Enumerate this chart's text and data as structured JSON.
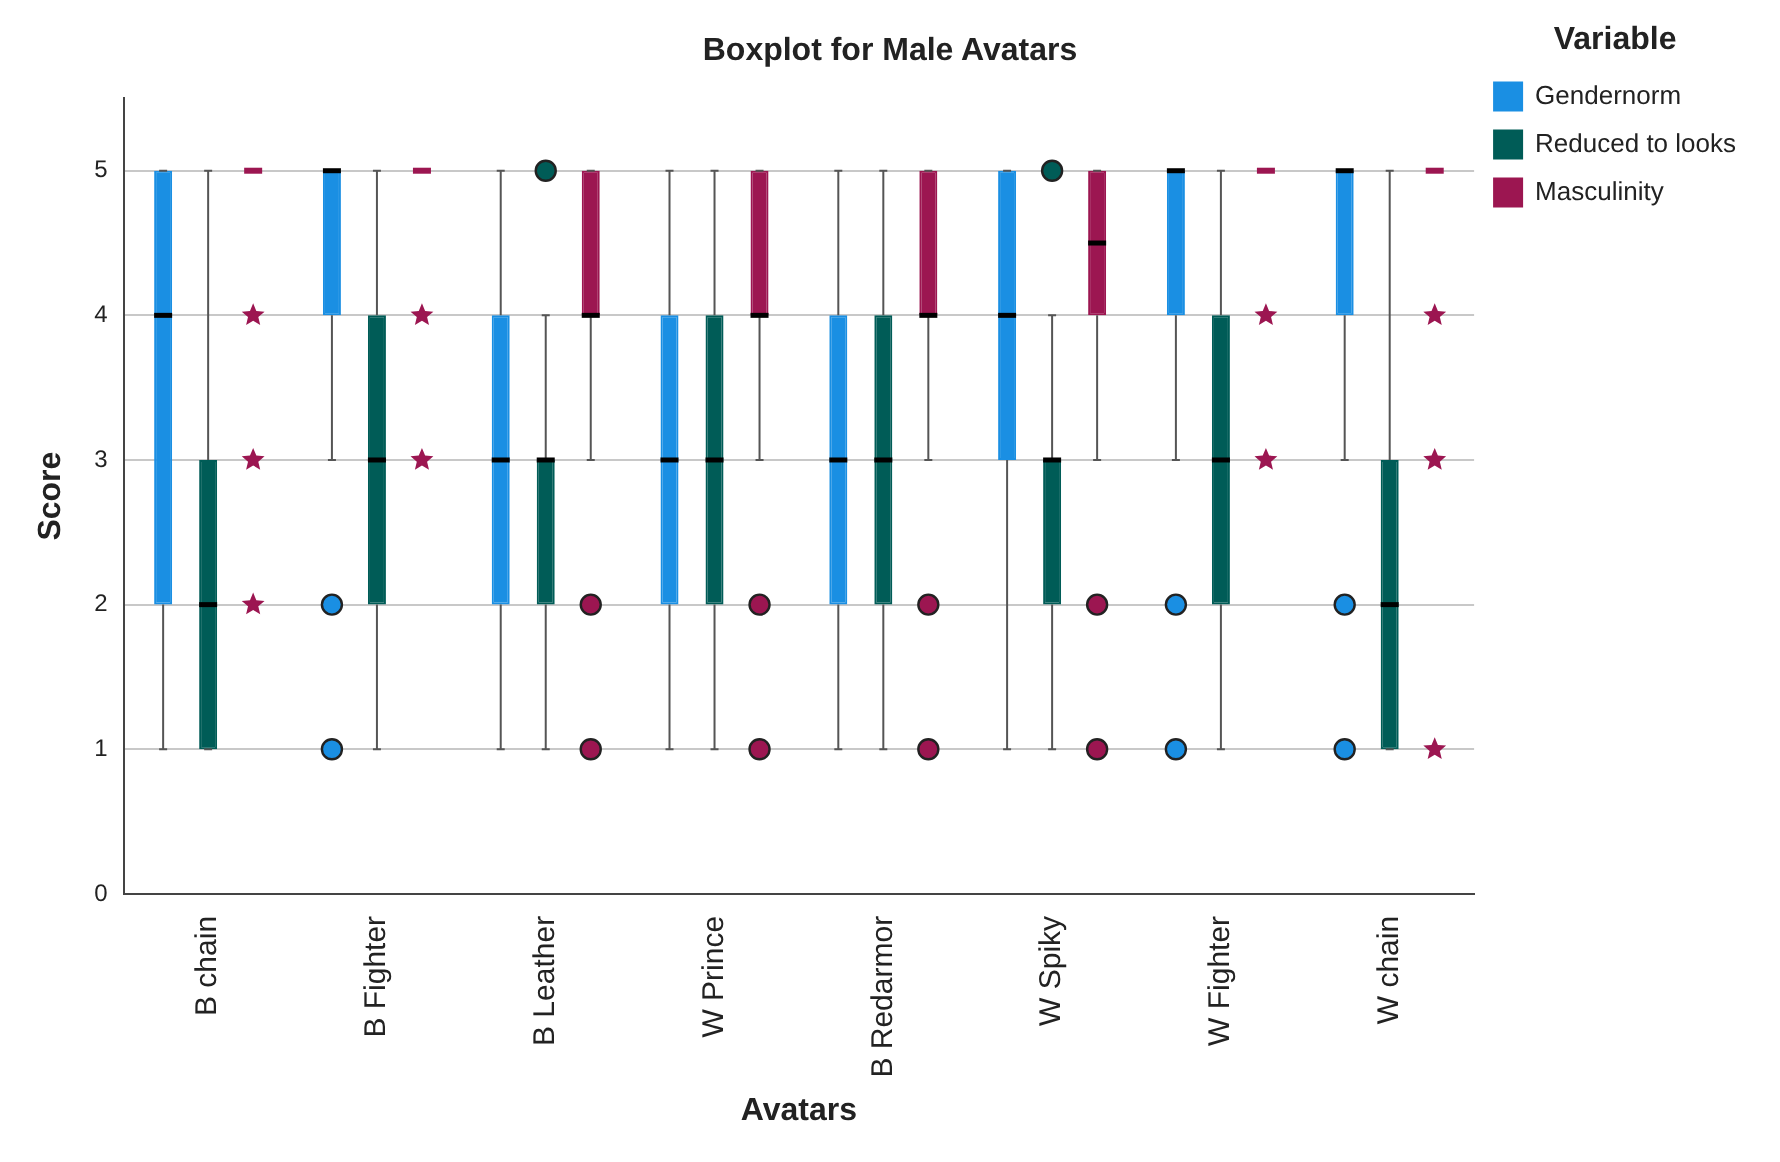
{
  "chart_data": {
    "type": "box",
    "title": "Boxplot for Male Avatars",
    "xlabel": "Avatars",
    "ylabel": "Score",
    "legend_title": "Variable",
    "legend": "top right",
    "grid": "y",
    "ylim": [
      0,
      5.5
    ],
    "yticks": [
      0,
      1,
      2,
      3,
      4,
      5
    ],
    "categories": [
      "B chain",
      "B Fighter",
      "B Leather",
      "W Prince",
      "B Redarmor",
      "W Spiky",
      "W Fighter",
      "W chain"
    ],
    "series": [
      {
        "name": "Gendernorm",
        "color": "#1a8fe3",
        "boxes": [
          {
            "low": 1,
            "q1": 2,
            "median": 4,
            "q3": 5,
            "high": 5
          },
          {
            "low": 3,
            "q1": 4,
            "median": 5,
            "q3": 5,
            "high": 5,
            "outliers": [
              2,
              1
            ]
          },
          {
            "low": 1,
            "q1": 2,
            "median": 3,
            "q3": 4,
            "high": 5
          },
          {
            "low": 1,
            "q1": 2,
            "median": 3,
            "q3": 4,
            "high": 5
          },
          {
            "low": 1,
            "q1": 2,
            "median": 3,
            "q3": 4,
            "high": 5
          },
          {
            "low": 1,
            "q1": 3,
            "median": 4,
            "q3": 5,
            "high": 5
          },
          {
            "low": 3,
            "q1": 4,
            "median": 5,
            "q3": 5,
            "high": 5,
            "outliers": [
              2,
              1
            ]
          },
          {
            "low": 3,
            "q1": 4,
            "median": 5,
            "q3": 5,
            "high": 5,
            "outliers": [
              2,
              1
            ]
          }
        ]
      },
      {
        "name": "Reduced to looks",
        "color": "#005c57",
        "boxes": [
          {
            "low": 1,
            "q1": 1,
            "median": 2,
            "q3": 3,
            "high": 5
          },
          {
            "low": 1,
            "q1": 2,
            "median": 3,
            "q3": 4,
            "high": 5
          },
          {
            "low": 1,
            "q1": 2,
            "median": 3,
            "q3": 3,
            "high": 4,
            "outliers": [
              5
            ]
          },
          {
            "low": 1,
            "q1": 2,
            "median": 3,
            "q3": 4,
            "high": 5
          },
          {
            "low": 1,
            "q1": 2,
            "median": 3,
            "q3": 4,
            "high": 5
          },
          {
            "low": 1,
            "q1": 2,
            "median": 3,
            "q3": 3,
            "high": 4,
            "outliers": [
              5
            ]
          },
          {
            "low": 1,
            "q1": 2,
            "median": 3,
            "q3": 4,
            "high": 5
          },
          {
            "low": 1,
            "q1": 1,
            "median": 2,
            "q3": 3,
            "high": 5
          }
        ]
      },
      {
        "name": "Masculinity",
        "color": "#9c1651",
        "boxes": [
          {
            "low": 5,
            "q1": 5,
            "median": 5,
            "q3": 5,
            "high": 5,
            "outliers": [
              4,
              3,
              2
            ]
          },
          {
            "low": 5,
            "q1": 5,
            "median": 5,
            "q3": 5,
            "high": 5,
            "outliers": [
              4,
              3
            ]
          },
          {
            "low": 3,
            "q1": 4,
            "median": 4,
            "q3": 5,
            "high": 5,
            "outliers": [
              2,
              1
            ]
          },
          {
            "low": 3,
            "q1": 4,
            "median": 4,
            "q3": 5,
            "high": 5,
            "outliers": [
              2,
              1
            ]
          },
          {
            "low": 3,
            "q1": 4,
            "median": 4,
            "q3": 5,
            "high": 5,
            "outliers": [
              2,
              1
            ]
          },
          {
            "low": 3,
            "q1": 4,
            "median": 4.5,
            "q3": 5,
            "high": 5,
            "outliers": [
              2,
              1
            ]
          },
          {
            "low": 5,
            "q1": 5,
            "median": 5,
            "q3": 5,
            "high": 5,
            "outliers": [
              4,
              3
            ]
          },
          {
            "low": 5,
            "q1": 5,
            "median": 5,
            "q3": 5,
            "high": 5,
            "outliers": [
              4,
              3,
              1
            ]
          }
        ]
      }
    ]
  }
}
